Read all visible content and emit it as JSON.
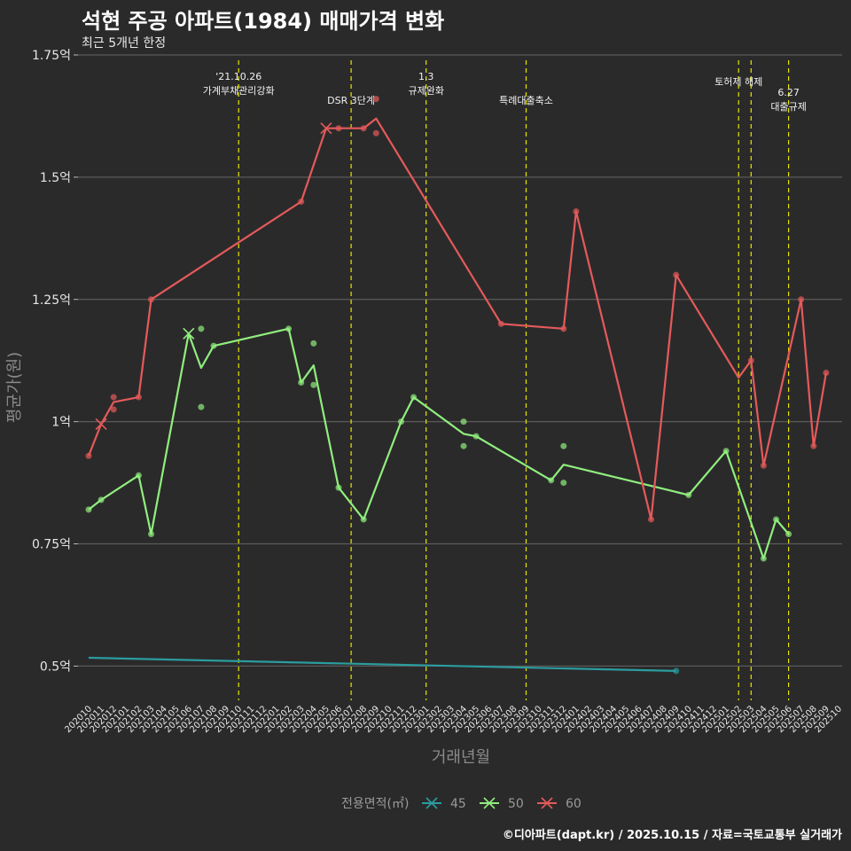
{
  "chart_data": {
    "type": "line",
    "title": "석현 주공 아파트(1984) 매매가격 변화",
    "subtitle": "최근 5개년 한정",
    "xlabel": "거래년월",
    "ylabel": "평균가(원)",
    "caption": "©디아파트(dapt.kr) / 2025.10.15 / 자료=국토교통부 실거래가",
    "ylim": [
      0.43,
      1.75
    ],
    "yticks": [
      {
        "value": 0.5,
        "label": "0.5억"
      },
      {
        "value": 0.75,
        "label": "0.75억"
      },
      {
        "value": 1.0,
        "label": "1억"
      },
      {
        "value": 1.25,
        "label": "1.25억"
      },
      {
        "value": 1.5,
        "label": "1.5억"
      },
      {
        "value": 1.75,
        "label": "1.75억"
      }
    ],
    "categories": [
      "202010",
      "202011",
      "202012",
      "202101",
      "202102",
      "202103",
      "202104",
      "202105",
      "202106",
      "202107",
      "202108",
      "202109",
      "202110",
      "202111",
      "202112",
      "202201",
      "202202",
      "202203",
      "202204",
      "202205",
      "202206",
      "202207",
      "202208",
      "202209",
      "202210",
      "202211",
      "202212",
      "202301",
      "202302",
      "202303",
      "202304",
      "202305",
      "202306",
      "202307",
      "202308",
      "202309",
      "202310",
      "202311",
      "202312",
      "202401",
      "202402",
      "202403",
      "202404",
      "202405",
      "202406",
      "202407",
      "202408",
      "202409",
      "202410",
      "202411",
      "202412",
      "202501",
      "202502",
      "202503",
      "202504",
      "202505",
      "202506",
      "202507",
      "202508",
      "202509",
      "202510"
    ],
    "legend_title": "전용면적(㎡)",
    "series": [
      {
        "name": "45",
        "color": "#2a9d9f",
        "line": [
          [
            0,
            0.517
          ],
          [
            47,
            0.49
          ]
        ],
        "points": [
          [
            47,
            0.49
          ]
        ],
        "crosses": []
      },
      {
        "name": "50",
        "color": "#90ee7e",
        "line": [
          [
            0,
            0.82
          ],
          [
            1,
            0.84
          ],
          [
            4,
            0.89
          ],
          [
            5,
            0.77
          ],
          [
            8,
            1.18
          ],
          [
            9,
            1.11
          ],
          [
            10,
            1.155
          ],
          [
            16,
            1.19
          ],
          [
            17,
            1.08
          ],
          [
            18,
            1.115
          ],
          [
            20,
            0.865
          ],
          [
            22,
            0.8
          ],
          [
            25,
            1.0
          ],
          [
            26,
            1.05
          ],
          [
            30,
            0.975
          ],
          [
            31,
            0.97
          ],
          [
            37,
            0.88
          ],
          [
            38,
            0.912
          ],
          [
            48,
            0.85
          ],
          [
            51,
            0.94
          ],
          [
            54,
            0.72
          ],
          [
            55,
            0.8
          ],
          [
            56,
            0.77
          ]
        ],
        "points": [
          [
            0,
            0.82
          ],
          [
            1,
            0.84
          ],
          [
            4,
            0.89
          ],
          [
            5,
            0.77
          ],
          [
            9,
            1.19
          ],
          [
            9,
            1.03
          ],
          [
            10,
            1.155
          ],
          [
            16,
            1.19
          ],
          [
            17,
            1.08
          ],
          [
            18,
            1.16
          ],
          [
            18,
            1.075
          ],
          [
            20,
            0.865
          ],
          [
            22,
            0.8
          ],
          [
            25,
            1.0
          ],
          [
            26,
            1.05
          ],
          [
            30,
            1.0
          ],
          [
            30,
            0.95
          ],
          [
            31,
            0.97
          ],
          [
            37,
            0.88
          ],
          [
            38,
            0.95
          ],
          [
            38,
            0.875
          ],
          [
            48,
            0.85
          ],
          [
            51,
            0.94
          ],
          [
            54,
            0.72
          ],
          [
            55,
            0.8
          ],
          [
            56,
            0.77
          ]
        ],
        "crosses": [
          [
            8,
            1.18
          ]
        ]
      },
      {
        "name": "60",
        "color": "#e55a5a",
        "line": [
          [
            0,
            0.93
          ],
          [
            1,
            0.995
          ],
          [
            2,
            1.04
          ],
          [
            4,
            1.05
          ],
          [
            5,
            1.25
          ],
          [
            17,
            1.45
          ],
          [
            19,
            1.6
          ],
          [
            20,
            1.6
          ],
          [
            22,
            1.6
          ],
          [
            23,
            1.62
          ],
          [
            33,
            1.2
          ],
          [
            38,
            1.19
          ],
          [
            39,
            1.43
          ],
          [
            45,
            0.8
          ],
          [
            47,
            1.3
          ],
          [
            52,
            1.09
          ],
          [
            53,
            1.125
          ],
          [
            54,
            0.91
          ],
          [
            57,
            1.25
          ],
          [
            58,
            0.95
          ],
          [
            59,
            1.1
          ]
        ],
        "points": [
          [
            0,
            0.93
          ],
          [
            2,
            1.05
          ],
          [
            2,
            1.025
          ],
          [
            4,
            1.05
          ],
          [
            5,
            1.25
          ],
          [
            17,
            1.45
          ],
          [
            20,
            1.6
          ],
          [
            22,
            1.6
          ],
          [
            23,
            1.59
          ],
          [
            23,
            1.66
          ],
          [
            33,
            1.2
          ],
          [
            38,
            1.19
          ],
          [
            39,
            1.43
          ],
          [
            45,
            0.8
          ],
          [
            47,
            1.3
          ],
          [
            53,
            1.125
          ],
          [
            54,
            0.91
          ],
          [
            57,
            1.25
          ],
          [
            58,
            0.95
          ],
          [
            59,
            1.1
          ]
        ],
        "crosses": [
          [
            1,
            0.995
          ],
          [
            19,
            1.6
          ]
        ]
      }
    ],
    "events": [
      {
        "x": 12,
        "lines": [
          "'21.10.26",
          "가계부채관리강화"
        ],
        "label_level": 0
      },
      {
        "x": 21,
        "lines": [
          "DSR 3단계"
        ],
        "label_level": 2
      },
      {
        "x": 27,
        "lines": [
          "1.3",
          "규제완화"
        ],
        "label_level": 0
      },
      {
        "x": 35,
        "lines": [
          "특례대출축소"
        ],
        "label_level": 2
      },
      {
        "x": 52,
        "lines": [
          "토허제 해제"
        ],
        "label_level": 1
      },
      {
        "x": 53,
        "lines": [],
        "label_level": 0
      },
      {
        "x": 56,
        "lines": [
          "6.27",
          "대출규제"
        ],
        "label_level": 3
      }
    ]
  }
}
